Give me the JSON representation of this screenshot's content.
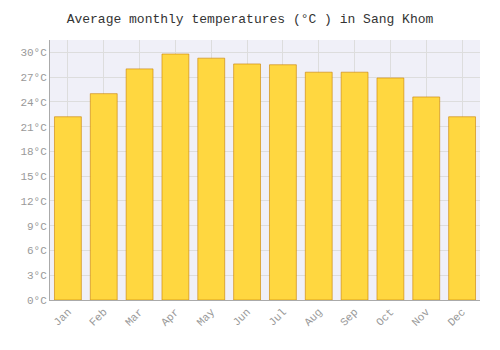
{
  "chart_data": {
    "type": "bar",
    "title": "Average monthly temperatures (°C ) in Sang Khom",
    "categories": [
      "Jan",
      "Feb",
      "Mar",
      "Apr",
      "May",
      "Jun",
      "Jul",
      "Aug",
      "Sep",
      "Oct",
      "Nov",
      "Dec"
    ],
    "values": [
      22.2,
      25.0,
      28.0,
      29.8,
      29.3,
      28.6,
      28.5,
      27.6,
      27.6,
      26.9,
      24.6,
      22.2
    ],
    "color": "#FFD740",
    "ylim": [
      0,
      31.5
    ],
    "yticks": [
      {
        "value": 0,
        "label": "0°C"
      },
      {
        "value": 3,
        "label": "3°C"
      },
      {
        "value": 6,
        "label": "6°C"
      },
      {
        "value": 9,
        "label": "9°C"
      },
      {
        "value": 12,
        "label": "12°C"
      },
      {
        "value": 15,
        "label": "15°C"
      },
      {
        "value": 18,
        "label": "18°C"
      },
      {
        "value": 21,
        "label": "21°C"
      },
      {
        "value": 24,
        "label": "24°C"
      },
      {
        "value": 27,
        "label": "27°C"
      },
      {
        "value": 30,
        "label": "30°C"
      }
    ],
    "grid": true
  }
}
